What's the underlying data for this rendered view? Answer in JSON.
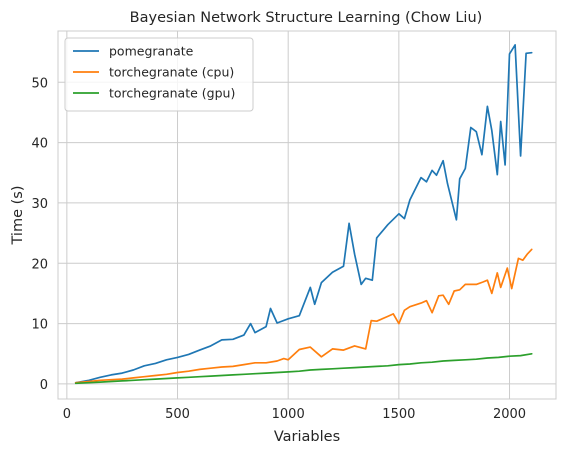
{
  "chart_data": {
    "type": "line",
    "title": "Bayesian Network Structure Learning (Chow Liu)",
    "xlabel": "Variables",
    "ylabel": "Time (s)",
    "xlim": [
      -40,
      2210
    ],
    "ylim": [
      -2.5,
      58.5
    ],
    "xticks": [
      0,
      500,
      1000,
      1500,
      2000
    ],
    "yticks": [
      0,
      10,
      20,
      30,
      40,
      50
    ],
    "grid": true,
    "legend_position": "top-left",
    "series": [
      {
        "name": "pomegranate",
        "color": "#1f77b4",
        "x": [
          40,
          100,
          150,
          200,
          250,
          300,
          350,
          400,
          450,
          500,
          550,
          600,
          650,
          700,
          750,
          800,
          830,
          850,
          900,
          920,
          950,
          1000,
          1050,
          1100,
          1120,
          1150,
          1200,
          1250,
          1275,
          1300,
          1330,
          1350,
          1380,
          1400,
          1450,
          1500,
          1525,
          1550,
          1600,
          1625,
          1650,
          1670,
          1700,
          1720,
          1760,
          1775,
          1800,
          1825,
          1850,
          1875,
          1900,
          1920,
          1945,
          1960,
          1980,
          2000,
          2025,
          2050,
          2075,
          2100
        ],
        "y": [
          0.2,
          0.6,
          1.1,
          1.5,
          1.8,
          2.3,
          3.0,
          3.4,
          4.0,
          4.4,
          4.9,
          5.6,
          6.3,
          7.3,
          7.4,
          8.1,
          10.0,
          8.5,
          9.5,
          12.5,
          10.1,
          10.8,
          11.3,
          16.0,
          13.2,
          16.8,
          18.5,
          19.5,
          26.6,
          21.5,
          16.5,
          17.5,
          17.2,
          24.2,
          26.4,
          28.2,
          27.4,
          30.5,
          34.2,
          33.5,
          35.4,
          34.6,
          37.0,
          33.2,
          27.2,
          34.0,
          35.7,
          42.5,
          41.8,
          38.0,
          46.0,
          42.0,
          34.7,
          43.5,
          36.3,
          54.7,
          56.2,
          37.8,
          54.8,
          54.9
        ]
      },
      {
        "name": "torchegranate (cpu)",
        "color": "#ff7f0e",
        "x": [
          40,
          100,
          150,
          200,
          250,
          300,
          350,
          400,
          450,
          500,
          550,
          600,
          650,
          700,
          750,
          800,
          850,
          900,
          950,
          980,
          1000,
          1050,
          1100,
          1150,
          1200,
          1250,
          1300,
          1350,
          1375,
          1400,
          1450,
          1475,
          1500,
          1525,
          1550,
          1600,
          1625,
          1650,
          1680,
          1700,
          1725,
          1750,
          1775,
          1800,
          1850,
          1880,
          1900,
          1920,
          1945,
          1960,
          1990,
          2010,
          2040,
          2060,
          2080,
          2100
        ],
        "y": [
          0.2,
          0.4,
          0.6,
          0.7,
          0.8,
          1.0,
          1.2,
          1.4,
          1.6,
          1.9,
          2.1,
          2.4,
          2.6,
          2.8,
          2.9,
          3.2,
          3.5,
          3.5,
          3.8,
          4.2,
          4.0,
          5.7,
          6.1,
          4.5,
          5.8,
          5.6,
          6.3,
          5.8,
          10.5,
          10.4,
          11.2,
          11.6,
          10.0,
          12.2,
          12.8,
          13.4,
          13.8,
          11.8,
          14.6,
          14.7,
          13.2,
          15.4,
          15.6,
          16.5,
          16.5,
          16.9,
          17.2,
          15.0,
          18.4,
          16.0,
          19.2,
          15.8,
          20.8,
          20.5,
          21.5,
          22.3
        ]
      },
      {
        "name": "torchegranate (gpu)",
        "color": "#2ca02c",
        "x": [
          40,
          100,
          150,
          200,
          250,
          300,
          350,
          400,
          450,
          500,
          550,
          600,
          650,
          700,
          750,
          800,
          850,
          900,
          950,
          1000,
          1050,
          1100,
          1150,
          1200,
          1250,
          1300,
          1350,
          1400,
          1450,
          1500,
          1550,
          1600,
          1650,
          1700,
          1750,
          1800,
          1850,
          1900,
          1950,
          2000,
          2050,
          2100
        ],
        "y": [
          0.1,
          0.2,
          0.3,
          0.4,
          0.5,
          0.6,
          0.7,
          0.8,
          0.9,
          1.0,
          1.1,
          1.2,
          1.3,
          1.4,
          1.5,
          1.6,
          1.7,
          1.8,
          1.9,
          2.0,
          2.1,
          2.3,
          2.4,
          2.5,
          2.6,
          2.7,
          2.8,
          2.9,
          3.0,
          3.2,
          3.3,
          3.5,
          3.6,
          3.8,
          3.9,
          4.0,
          4.1,
          4.3,
          4.4,
          4.6,
          4.7,
          5.0
        ]
      }
    ]
  }
}
